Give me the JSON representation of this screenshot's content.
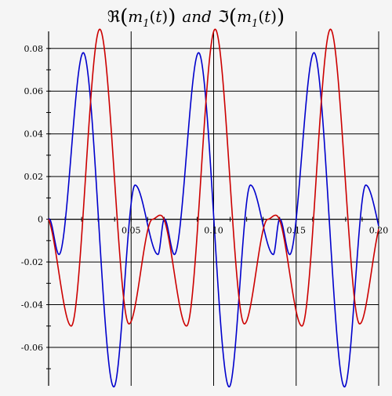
{
  "chart_data": {
    "type": "line",
    "title": {
      "re_symbol": "ℜ",
      "im_symbol": "ℑ",
      "func": "m",
      "subscript": "1",
      "arg": "t",
      "conjunction": "and"
    },
    "xlabel": "",
    "ylabel": "",
    "xlim": [
      0,
      0.2
    ],
    "ylim": [
      -0.078,
      0.088
    ],
    "x_ticks": [
      0.05,
      0.1,
      0.15,
      0.2
    ],
    "x_tick_labels": [
      "0.05",
      "0.10",
      "0.15",
      "0.20"
    ],
    "y_ticks": [
      0.08,
      0.06,
      0.04,
      0.02,
      0,
      -0.02,
      -0.04,
      -0.06
    ],
    "y_tick_labels": [
      "0.08",
      "0.06",
      "0.04",
      "0.02",
      "0",
      "-0.02",
      "-0.04",
      "-0.06"
    ],
    "grid": true,
    "period": 0.0699,
    "series": [
      {
        "color": "#0000cc",
        "keypoints": [
          [
            0,
            0
          ],
          [
            0.0063,
            -0.0165
          ],
          [
            0.021,
            0.078
          ],
          [
            0.0395,
            -0.0785
          ],
          [
            0.0524,
            0.016
          ],
          [
            0.0663,
            -0.0165
          ],
          [
            0.0699,
            0
          ]
        ]
      },
      {
        "color": "#cc0000",
        "keypoints": [
          [
            0,
            0
          ],
          [
            0.0137,
            -0.05
          ],
          [
            0.031,
            0.089
          ],
          [
            0.0487,
            -0.049
          ],
          [
            0.0629,
            0.0
          ],
          [
            0.0699,
            0
          ]
        ]
      }
    ]
  }
}
